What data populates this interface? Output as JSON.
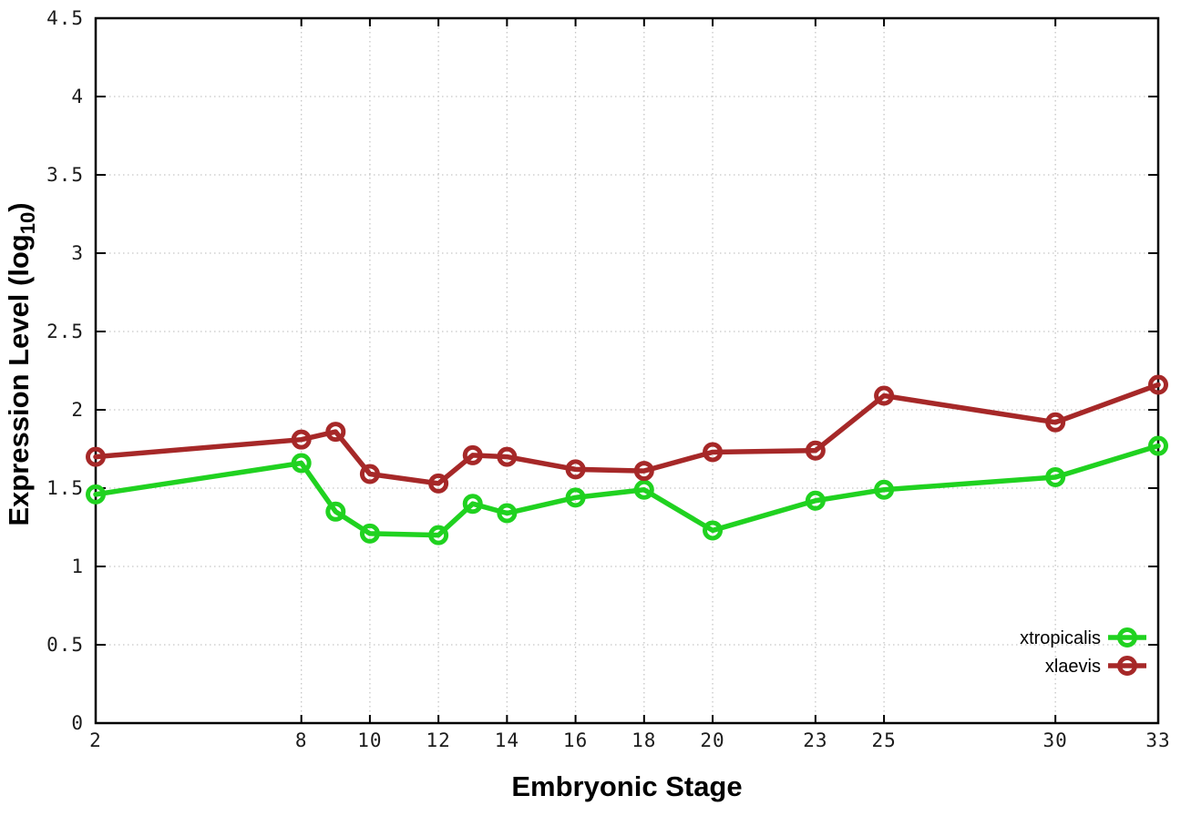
{
  "chart": {
    "xlabel": "Embryonic Stage",
    "ylabel": {
      "main": "Expression Level (log",
      "sub": "10",
      "end": ")"
    },
    "colors": {
      "xtropicalis": "#20d220",
      "xlaevis": "#a62828",
      "grid": "#c6c6c6",
      "axis": "#000000",
      "tick_text": "#1c1c1c",
      "background": "#ffffff"
    },
    "x_tick_labels": [
      "2",
      "8",
      "10",
      "12",
      "14",
      "16",
      "18",
      "20",
      "23",
      "25",
      "30",
      "33"
    ],
    "x_tick_values": [
      2,
      8,
      10,
      12,
      14,
      16,
      18,
      20,
      23,
      25,
      30,
      33
    ],
    "y_tick_labels": [
      "0",
      "0.5",
      "1",
      "1.5",
      "2",
      "2.5",
      "3",
      "3.5",
      "4",
      "4.5"
    ],
    "y_tick_values": [
      0,
      0.5,
      1,
      1.5,
      2,
      2.5,
      3,
      3.5,
      4,
      4.5
    ],
    "legend": [
      {
        "label": "xtropicalis",
        "series": "xtropicalis"
      },
      {
        "label": "xlaevis",
        "series": "xlaevis"
      }
    ]
  },
  "chart_data": {
    "type": "line",
    "title": "",
    "xlabel": "Embryonic Stage",
    "ylabel": "Expression Level (log10)",
    "x": [
      2,
      8,
      9,
      10,
      12,
      13,
      14,
      16,
      18,
      20,
      23,
      25,
      30,
      33
    ],
    "series": [
      {
        "name": "xtropicalis",
        "color": "#20d220",
        "values": [
          1.46,
          1.66,
          1.35,
          1.21,
          1.2,
          1.4,
          1.34,
          1.44,
          1.49,
          1.23,
          1.42,
          1.49,
          1.57,
          1.77
        ]
      },
      {
        "name": "xlaevis",
        "color": "#a62828",
        "values": [
          1.7,
          1.81,
          1.86,
          1.59,
          1.53,
          1.71,
          1.7,
          1.62,
          1.61,
          1.73,
          1.74,
          2.09,
          1.92,
          2.16
        ]
      }
    ],
    "xlim": [
      2,
      33
    ],
    "ylim": [
      0,
      4.5
    ],
    "grid": true,
    "grid_style": "dotted",
    "legend_position": "bottom-right",
    "marker": "open-circle",
    "marker_radius": 8.5,
    "marker_stroke_width": 5,
    "line_width": 5.5
  }
}
